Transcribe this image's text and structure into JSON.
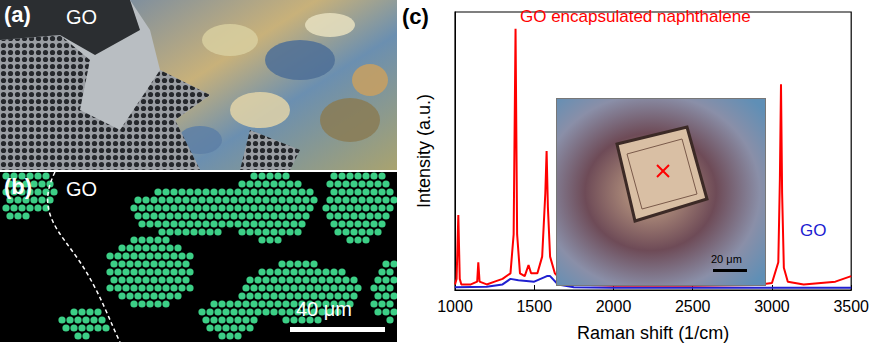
{
  "panels": [
    {
      "label": "(a)",
      "text": "GO"
    },
    {
      "label": "(b)",
      "text": "GO",
      "scale_bar": "40 μm"
    }
  ],
  "chart_data": {
    "label": "(c)",
    "type": "line",
    "x_label": "Raman shift (1/cm)",
    "y_label": "Intensity (a.u.)",
    "xlim": [
      1000,
      3500
    ],
    "xticks": [
      1000,
      1500,
      2000,
      2500,
      3000,
      3500
    ],
    "ylim": [
      0,
      100
    ],
    "tick_labels": "x",
    "grid": false,
    "series": [
      {
        "name": "GO encapsulated naphthalene",
        "color": "#ff0000",
        "x": [
          1000,
          1010,
          1021,
          1030,
          1040,
          1100,
          1140,
          1147,
          1155,
          1200,
          1250,
          1300,
          1350,
          1370,
          1382,
          1392,
          1410,
          1440,
          1464,
          1480,
          1520,
          1550,
          1570,
          1578,
          1586,
          1600,
          1630,
          1680,
          1750,
          2000,
          2500,
          2900,
          3000,
          3040,
          3050,
          3057,
          3064,
          3075,
          3100,
          3200,
          3400,
          3500
        ],
        "values": [
          2,
          4,
          27,
          4,
          2,
          2,
          3,
          10,
          3,
          2,
          3,
          4,
          6,
          20,
          94,
          20,
          6,
          5,
          9,
          6,
          6,
          12,
          35,
          50,
          30,
          12,
          6,
          3,
          2,
          1.5,
          1.5,
          1.8,
          2.5,
          10,
          40,
          74,
          35,
          8,
          3,
          2,
          3,
          5
        ]
      },
      {
        "name": "GO",
        "color": "#2020d0",
        "x": [
          1000,
          1200,
          1300,
          1350,
          1400,
          1500,
          1580,
          1600,
          1650,
          1750,
          2000,
          2500,
          3000,
          3500
        ],
        "values": [
          1,
          1.2,
          2,
          4,
          3.5,
          3,
          5,
          5,
          2,
          1,
          0.8,
          0.8,
          0.8,
          0.8
        ]
      }
    ],
    "inset": {
      "scale_bar": "20 μm"
    }
  }
}
